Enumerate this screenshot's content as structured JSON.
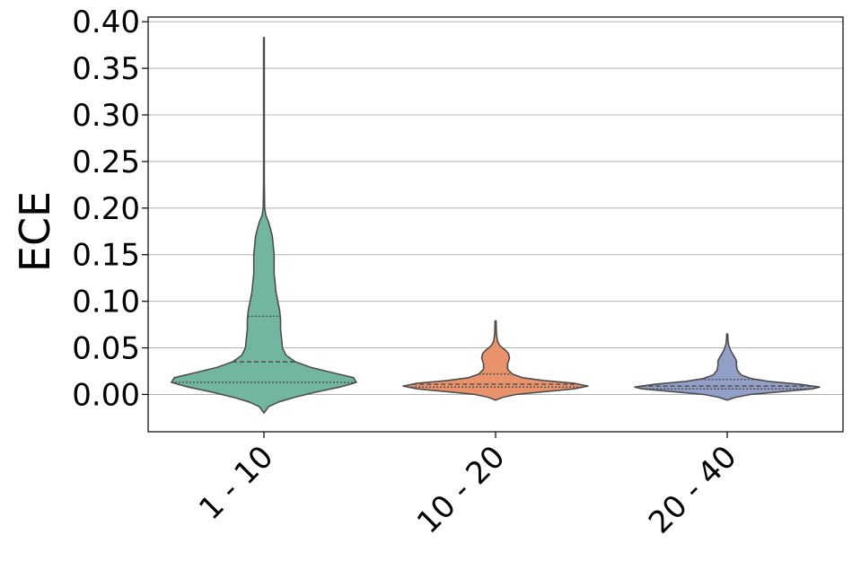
{
  "chart_data": {
    "type": "violin",
    "title": "",
    "xlabel": "",
    "ylabel": "ECE",
    "ylim": [
      -0.04,
      0.405
    ],
    "yticks": [
      "0.00",
      "0.05",
      "0.10",
      "0.15",
      "0.20",
      "0.25",
      "0.30",
      "0.35",
      "0.40"
    ],
    "ytick_values": [
      0.0,
      0.05,
      0.1,
      0.15,
      0.2,
      0.25,
      0.3,
      0.35,
      0.4
    ],
    "grid": "horizontal",
    "categories": [
      "1 - 10",
      "10 - 20",
      "20 - 40"
    ],
    "series": [
      {
        "category": "1 - 10",
        "color": "#72b6a1",
        "min": -0.02,
        "max": 0.383,
        "q1": 0.013,
        "median": 0.035,
        "q3": 0.084,
        "density_profile": [
          [
            -0.02,
            0.0
          ],
          [
            -0.013,
            0.05
          ],
          [
            -0.008,
            0.16
          ],
          [
            -0.003,
            0.33
          ],
          [
            0.002,
            0.54
          ],
          [
            0.008,
            0.82
          ],
          [
            0.013,
            1.0
          ],
          [
            0.018,
            0.97
          ],
          [
            0.023,
            0.76
          ],
          [
            0.029,
            0.51
          ],
          [
            0.035,
            0.34
          ],
          [
            0.042,
            0.24
          ],
          [
            0.05,
            0.2
          ],
          [
            0.06,
            0.19
          ],
          [
            0.07,
            0.18
          ],
          [
            0.08,
            0.18
          ],
          [
            0.09,
            0.17
          ],
          [
            0.1,
            0.15
          ],
          [
            0.11,
            0.13
          ],
          [
            0.12,
            0.12
          ],
          [
            0.13,
            0.11
          ],
          [
            0.14,
            0.11
          ],
          [
            0.15,
            0.11
          ],
          [
            0.16,
            0.1
          ],
          [
            0.17,
            0.09
          ],
          [
            0.178,
            0.07
          ],
          [
            0.185,
            0.05
          ],
          [
            0.192,
            0.02
          ],
          [
            0.2,
            0.008
          ],
          [
            0.23,
            0.004
          ],
          [
            0.3,
            0.004
          ],
          [
            0.383,
            0.004
          ]
        ]
      },
      {
        "category": "10 - 20",
        "color": "#e9936d",
        "min": -0.006,
        "max": 0.079,
        "q1": 0.008,
        "median": 0.011,
        "q3": 0.022,
        "density_profile": [
          [
            -0.006,
            0.0
          ],
          [
            -0.003,
            0.08
          ],
          [
            0.0,
            0.22
          ],
          [
            0.003,
            0.52
          ],
          [
            0.006,
            0.85
          ],
          [
            0.009,
            1.0
          ],
          [
            0.012,
            0.85
          ],
          [
            0.015,
            0.52
          ],
          [
            0.018,
            0.29
          ],
          [
            0.022,
            0.18
          ],
          [
            0.027,
            0.13
          ],
          [
            0.033,
            0.13
          ],
          [
            0.039,
            0.15
          ],
          [
            0.044,
            0.14
          ],
          [
            0.048,
            0.1
          ],
          [
            0.052,
            0.05
          ],
          [
            0.057,
            0.02
          ],
          [
            0.065,
            0.01
          ],
          [
            0.079,
            0.006
          ]
        ]
      },
      {
        "category": "20 - 40",
        "color": "#929fc7",
        "min": -0.006,
        "max": 0.065,
        "q1": 0.006,
        "median": 0.009,
        "q3": 0.016,
        "density_profile": [
          [
            -0.006,
            0.0
          ],
          [
            -0.003,
            0.09
          ],
          [
            0.0,
            0.25
          ],
          [
            0.003,
            0.58
          ],
          [
            0.006,
            0.92
          ],
          [
            0.008,
            1.0
          ],
          [
            0.011,
            0.78
          ],
          [
            0.014,
            0.45
          ],
          [
            0.017,
            0.26
          ],
          [
            0.021,
            0.15
          ],
          [
            0.026,
            0.11
          ],
          [
            0.031,
            0.1
          ],
          [
            0.036,
            0.1
          ],
          [
            0.04,
            0.08
          ],
          [
            0.045,
            0.05
          ],
          [
            0.05,
            0.025
          ],
          [
            0.055,
            0.012
          ],
          [
            0.06,
            0.008
          ],
          [
            0.065,
            0.006
          ]
        ]
      }
    ]
  }
}
